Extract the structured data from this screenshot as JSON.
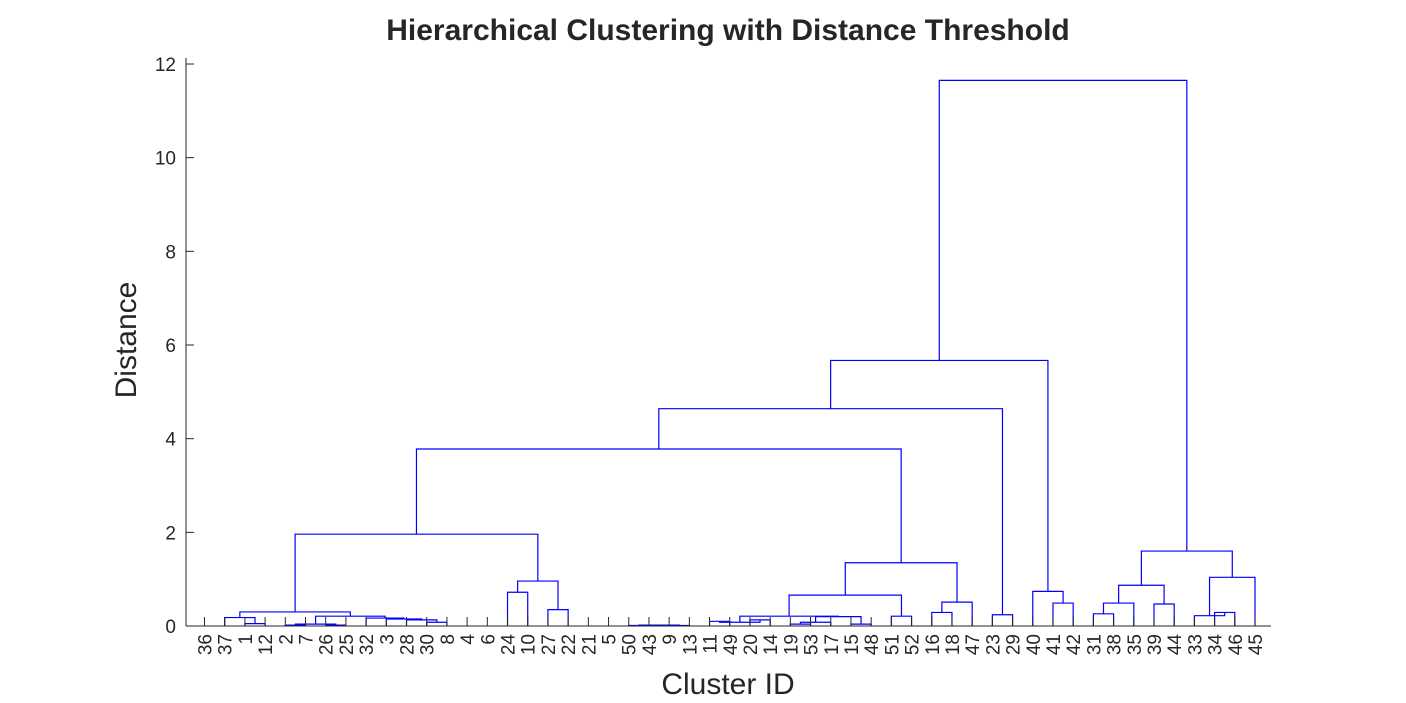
{
  "chart_data": {
    "type": "dendrogram",
    "title": "Hierarchical Clustering with Distance Threshold",
    "xlabel": "Cluster ID",
    "ylabel": "Distance",
    "ylim": [
      0,
      12.2
    ],
    "yticks": [
      0,
      2,
      4,
      6,
      8,
      10,
      12
    ],
    "line_color": "#0000ff",
    "leaf_order": [
      "36",
      "37",
      "1",
      "12",
      "2",
      "7",
      "26",
      "25",
      "32",
      "3",
      "28",
      "30",
      "8",
      "4",
      "6",
      "24",
      "10",
      "27",
      "22",
      "21",
      "5",
      "50",
      "43",
      "9",
      "13",
      "11",
      "49",
      "20",
      "14",
      "19",
      "53",
      "17",
      "15",
      "48",
      "51",
      "52",
      "16",
      "18",
      "47",
      "23",
      "29",
      "40",
      "41",
      "42",
      "31",
      "38",
      "35",
      "39",
      "44",
      "33",
      "34",
      "46",
      "45"
    ],
    "merges": [
      {
        "left": "1",
        "right": "12",
        "distance": 0.05
      },
      {
        "left": "37",
        "right": "1+12",
        "distance": 0.18
      },
      {
        "left": "2",
        "right": "7",
        "distance": 0.02
      },
      {
        "left": "26",
        "right": "25",
        "distance": 0.02
      },
      {
        "left": "2+7",
        "right": "26+25",
        "distance": 0.04
      },
      {
        "left": "30",
        "right": "8",
        "distance": 0.08
      },
      {
        "left": "28",
        "right": "30+8",
        "distance": 0.13
      },
      {
        "left": "3",
        "right": "28+30+8",
        "distance": 0.15
      },
      {
        "left": "32",
        "right": "3+28+30+8",
        "distance": 0.17
      },
      {
        "left": "2+7+26+25",
        "right": "32+3+28+30+8",
        "distance": 0.21
      },
      {
        "left": "37+1+12",
        "right": "2+7+26+25+32+3+28+30+8",
        "distance": 0.3
      },
      {
        "left": "24",
        "right": "10",
        "distance": 0.72
      },
      {
        "left": "27",
        "right": "22",
        "distance": 0.35
      },
      {
        "left": "24+10",
        "right": "27+22",
        "distance": 0.96
      },
      {
        "left": "C1",
        "right": "C2",
        "distance": 1.96
      },
      {
        "left": "50",
        "right": "43",
        "distance": 0.01
      },
      {
        "left": "9",
        "right": "13",
        "distance": 0.01
      },
      {
        "left": "50+43",
        "right": "9+13",
        "distance": 0.02
      },
      {
        "left": "11",
        "right": "49",
        "distance": 0.1
      },
      {
        "left": "20",
        "right": "14",
        "distance": 0.13
      },
      {
        "left": "11+49",
        "right": "20+14",
        "distance": 0.08
      },
      {
        "left": "19",
        "right": "53",
        "distance": 0.04
      },
      {
        "left": "19+53",
        "right": "17",
        "distance": 0.08
      },
      {
        "left": "15",
        "right": "48",
        "distance": 0.04
      },
      {
        "left": "19+53+17",
        "right": "15+48",
        "distance": 0.2
      },
      {
        "left": "20+14+...",
        "right": "19+53+17+15+48",
        "distance": 0.21
      },
      {
        "left": "51",
        "right": "52",
        "distance": 0.21
      },
      {
        "left": "16",
        "right": "18",
        "distance": 0.29
      },
      {
        "left": "16+18",
        "right": "47",
        "distance": 0.51
      },
      {
        "left": "C3",
        "right": "51+52",
        "distance": 0.66
      },
      {
        "left": "C3+51+52",
        "right": "16+18+47",
        "distance": 1.35
      },
      {
        "left": "C1+C2",
        "right": "C3+C4",
        "distance": 3.78
      },
      {
        "left": "23",
        "right": "29",
        "distance": 0.24
      },
      {
        "left": "C5",
        "right": "23+29",
        "distance": 4.64
      },
      {
        "left": "41",
        "right": "42",
        "distance": 0.49
      },
      {
        "left": "40",
        "right": "41+42",
        "distance": 0.74
      },
      {
        "left": "C6",
        "right": "40+41+42",
        "distance": 5.67
      },
      {
        "left": "31",
        "right": "38",
        "distance": 0.26
      },
      {
        "left": "31+38",
        "right": "35",
        "distance": 0.49
      },
      {
        "left": "39",
        "right": "44",
        "distance": 0.47
      },
      {
        "left": "31+38+35",
        "right": "39+44",
        "distance": 0.87
      },
      {
        "left": "34",
        "right": "46",
        "distance": 0.29
      },
      {
        "left": "33",
        "right": "34+46",
        "distance": 0.22
      },
      {
        "left": "33+34+46",
        "right": "45",
        "distance": 1.04
      },
      {
        "left": "C7",
        "right": "C8",
        "distance": 1.6
      },
      {
        "left": "C6+40+41+42",
        "right": "C7+C8",
        "distance": 11.65
      }
    ]
  }
}
